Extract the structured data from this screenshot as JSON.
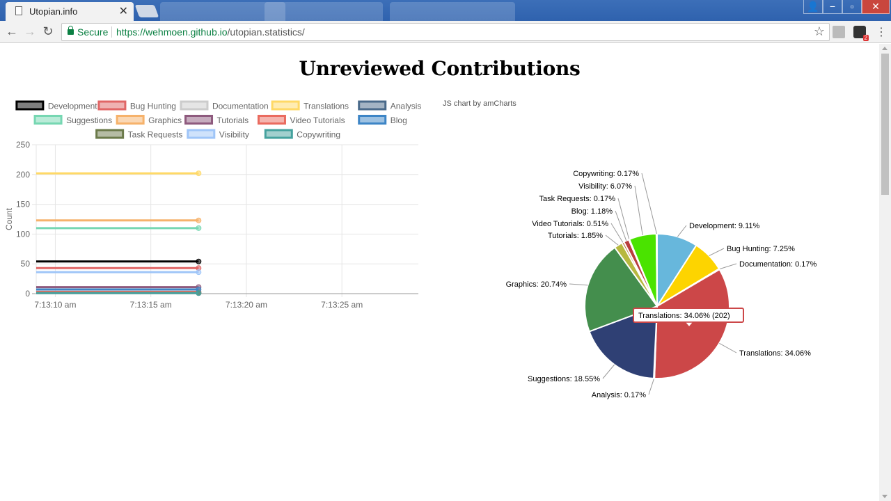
{
  "browser": {
    "tab_title": "Utopian.info",
    "tab_close": "✕",
    "secure_label": "Secure",
    "url_host": "https://wehmoen.github.io",
    "url_path": "/utopian.statistics/"
  },
  "page": {
    "title": "Unreviewed Contributions"
  },
  "colors": {
    "Development": "#000000",
    "Bug Hunting": "#e06666",
    "Documentation": "#cccccc",
    "Translations": "#ffd966",
    "Analysis": "#4a6a8a",
    "Suggestions": "#76d7b2",
    "Graphics": "#f6b26b",
    "Tutorials": "#8e5a7e",
    "Video Tutorials": "#ea6b5f",
    "Blog": "#3d85c6",
    "Task Requests": "#6b7a4a",
    "Visibility": "#9fc5f8",
    "Copywriting": "#45a29e"
  },
  "chart_data": [
    {
      "type": "line",
      "ylabel": "Count",
      "ylim": [
        0,
        250
      ],
      "y_ticks": [
        0,
        50,
        100,
        150,
        200,
        250
      ],
      "x_ticks": [
        "7:13:10 am",
        "7:13:15 am",
        "7:13:20 am",
        "7:13:25 am"
      ],
      "x_range_seconds": [
        9,
        29
      ],
      "legend_position": "top",
      "series": [
        {
          "name": "Development",
          "x": [
            9,
            17.5
          ],
          "values": [
            54,
            54
          ]
        },
        {
          "name": "Bug Hunting",
          "x": [
            9,
            17.5
          ],
          "values": [
            43,
            43
          ]
        },
        {
          "name": "Documentation",
          "x": [
            9,
            17.5
          ],
          "values": [
            1,
            1
          ]
        },
        {
          "name": "Translations",
          "x": [
            9,
            17.5
          ],
          "values": [
            202,
            202
          ]
        },
        {
          "name": "Analysis",
          "x": [
            9,
            17.5
          ],
          "values": [
            1,
            1
          ]
        },
        {
          "name": "Suggestions",
          "x": [
            9,
            17.5
          ],
          "values": [
            110,
            110
          ]
        },
        {
          "name": "Graphics",
          "x": [
            9,
            17.5
          ],
          "values": [
            123,
            123
          ]
        },
        {
          "name": "Tutorials",
          "x": [
            9,
            17.5
          ],
          "values": [
            11,
            11
          ]
        },
        {
          "name": "Video Tutorials",
          "x": [
            9,
            17.5
          ],
          "values": [
            3,
            3
          ]
        },
        {
          "name": "Blog",
          "x": [
            9,
            17.5
          ],
          "values": [
            7,
            7
          ]
        },
        {
          "name": "Task Requests",
          "x": [
            9,
            17.5
          ],
          "values": [
            1,
            1
          ]
        },
        {
          "name": "Visibility",
          "x": [
            9,
            17.5
          ],
          "values": [
            36,
            36
          ]
        },
        {
          "name": "Copywriting",
          "x": [
            9,
            17.5
          ],
          "values": [
            1,
            1
          ]
        }
      ]
    },
    {
      "type": "pie",
      "credit": "JS chart by amCharts",
      "slices": [
        {
          "name": "Development",
          "percent": 9.11,
          "color": "#67b7dc"
        },
        {
          "name": "Bug Hunting",
          "percent": 7.25,
          "color": "#fdd400"
        },
        {
          "name": "Documentation",
          "percent": 0.17,
          "color": "#84b761"
        },
        {
          "name": "Translations",
          "percent": 34.06,
          "color": "#cc4748",
          "value": 202
        },
        {
          "name": "Analysis",
          "percent": 0.17,
          "color": "#cd82ad"
        },
        {
          "name": "Suggestions",
          "percent": 18.55,
          "color": "#2f4074"
        },
        {
          "name": "Graphics",
          "percent": 20.74,
          "color": "#448e4d"
        },
        {
          "name": "Tutorials",
          "percent": 1.85,
          "color": "#b7b83f"
        },
        {
          "name": "Video Tutorials",
          "percent": 0.51,
          "color": "#b9783f"
        },
        {
          "name": "Blog",
          "percent": 1.18,
          "color": "#b93e3d"
        },
        {
          "name": "Task Requests",
          "percent": 0.17,
          "color": "#913167"
        },
        {
          "name": "Visibility",
          "percent": 6.07,
          "color": "#4ae300"
        },
        {
          "name": "Copywriting",
          "percent": 0.17,
          "color": "#0d8ecf"
        }
      ],
      "tooltip": "Translations: 34.06% (202)"
    }
  ]
}
